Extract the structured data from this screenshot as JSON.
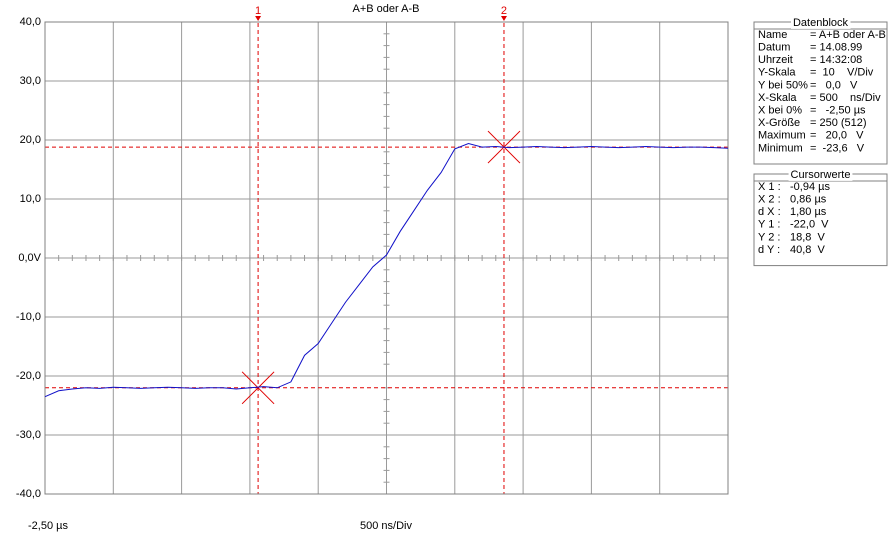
{
  "chart_data": {
    "type": "line",
    "title": "A+B oder A-B",
    "xlabel": "500 ns/Div",
    "x_start_label": "-2,50 µs",
    "x": [
      -2.5,
      -2.4,
      -2.3,
      -2.2,
      -2.1,
      -2.0,
      -1.9,
      -1.8,
      -1.7,
      -1.6,
      -1.5,
      -1.4,
      -1.3,
      -1.2,
      -1.1,
      -1.0,
      -0.9,
      -0.8,
      -0.7,
      -0.6,
      -0.5,
      -0.4,
      -0.3,
      -0.2,
      -0.1,
      0.0,
      0.1,
      0.2,
      0.3,
      0.4,
      0.5,
      0.6,
      0.7,
      0.8,
      0.9,
      1.0,
      1.1,
      1.2,
      1.3,
      1.4,
      1.5,
      1.6,
      1.7,
      1.8,
      1.9,
      2.0,
      2.1,
      2.2,
      2.3,
      2.4,
      2.5
    ],
    "series": [
      {
        "name": "A+B oder A-B",
        "color": "#1010c8",
        "values": [
          -23.5,
          -22.5,
          -22.2,
          -22.0,
          -22.1,
          -21.9,
          -22.0,
          -22.1,
          -22.0,
          -21.9,
          -22.0,
          -22.1,
          -22.0,
          -22.0,
          -22.2,
          -22.0,
          -21.8,
          -22.0,
          -21.0,
          -16.5,
          -14.5,
          -11.0,
          -7.5,
          -4.5,
          -1.5,
          0.5,
          4.5,
          8.0,
          11.5,
          14.5,
          18.5,
          19.4,
          18.8,
          18.9,
          18.7,
          18.8,
          18.9,
          18.8,
          18.7,
          18.8,
          18.9,
          18.8,
          18.7,
          18.8,
          18.9,
          18.8,
          18.7,
          18.8,
          18.8,
          18.7,
          18.6
        ]
      }
    ],
    "xlim": [
      -2.5,
      2.5
    ],
    "xticks": [
      -2.5,
      -2.0,
      -1.5,
      -1.0,
      -0.5,
      0.0,
      0.5,
      1.0,
      1.5,
      2.0,
      2.5
    ],
    "ylim": [
      -40,
      40
    ],
    "yticks": [
      {
        "value": -40,
        "label": "-40,0"
      },
      {
        "value": -30,
        "label": "-30,0"
      },
      {
        "value": -20,
        "label": "-20,0"
      },
      {
        "value": -10,
        "label": "-10,0"
      },
      {
        "value": 0,
        "label": "0,0V"
      },
      {
        "value": 10,
        "label": "10,0"
      },
      {
        "value": 20,
        "label": "20,0"
      },
      {
        "value": 30,
        "label": "30,0"
      },
      {
        "value": 40,
        "label": "40,0"
      }
    ],
    "grid": true,
    "cursors": [
      {
        "label": "1",
        "x": -0.94,
        "y": -22.0,
        "color": "#e00000"
      },
      {
        "label": "2",
        "x": 0.86,
        "y": 18.8,
        "color": "#e00000"
      }
    ]
  },
  "panels": [
    {
      "title": "Datenblock",
      "rows": [
        {
          "label": "Name",
          "value": "= A+B oder A-B"
        },
        {
          "label": "Datum",
          "value": "= 14.08.99"
        },
        {
          "label": "Uhrzeit",
          "value": "= 14:32:08"
        },
        {
          "label": "Y-Skala",
          "value": "=  10    V/Div"
        },
        {
          "label": "Y bei 50%",
          "value": "=   0,0   V"
        },
        {
          "label": "X-Skala",
          "value": "= 500    ns/Div"
        },
        {
          "label": "X bei 0%",
          "value": "=   -2,50 µs"
        },
        {
          "label": "X-Größe",
          "value": "= 250 (512)"
        },
        {
          "label": "Maximum",
          "value": "=   20,0   V"
        },
        {
          "label": "Minimum",
          "value": "=  -23,6   V"
        }
      ]
    },
    {
      "title": "Cursorwerte",
      "rows": [
        {
          "label": "X 1 :",
          "value": "-0,94 µs"
        },
        {
          "label": "X 2 :",
          "value": "0,86 µs"
        },
        {
          "label": "d X :",
          "value": "1,80 µs"
        },
        {
          "label": "Y 1 :",
          "value": "-22,0  V"
        },
        {
          "label": "Y 2 :",
          "value": "18,8  V"
        },
        {
          "label": "d Y :",
          "value": "40,8  V"
        }
      ]
    }
  ]
}
